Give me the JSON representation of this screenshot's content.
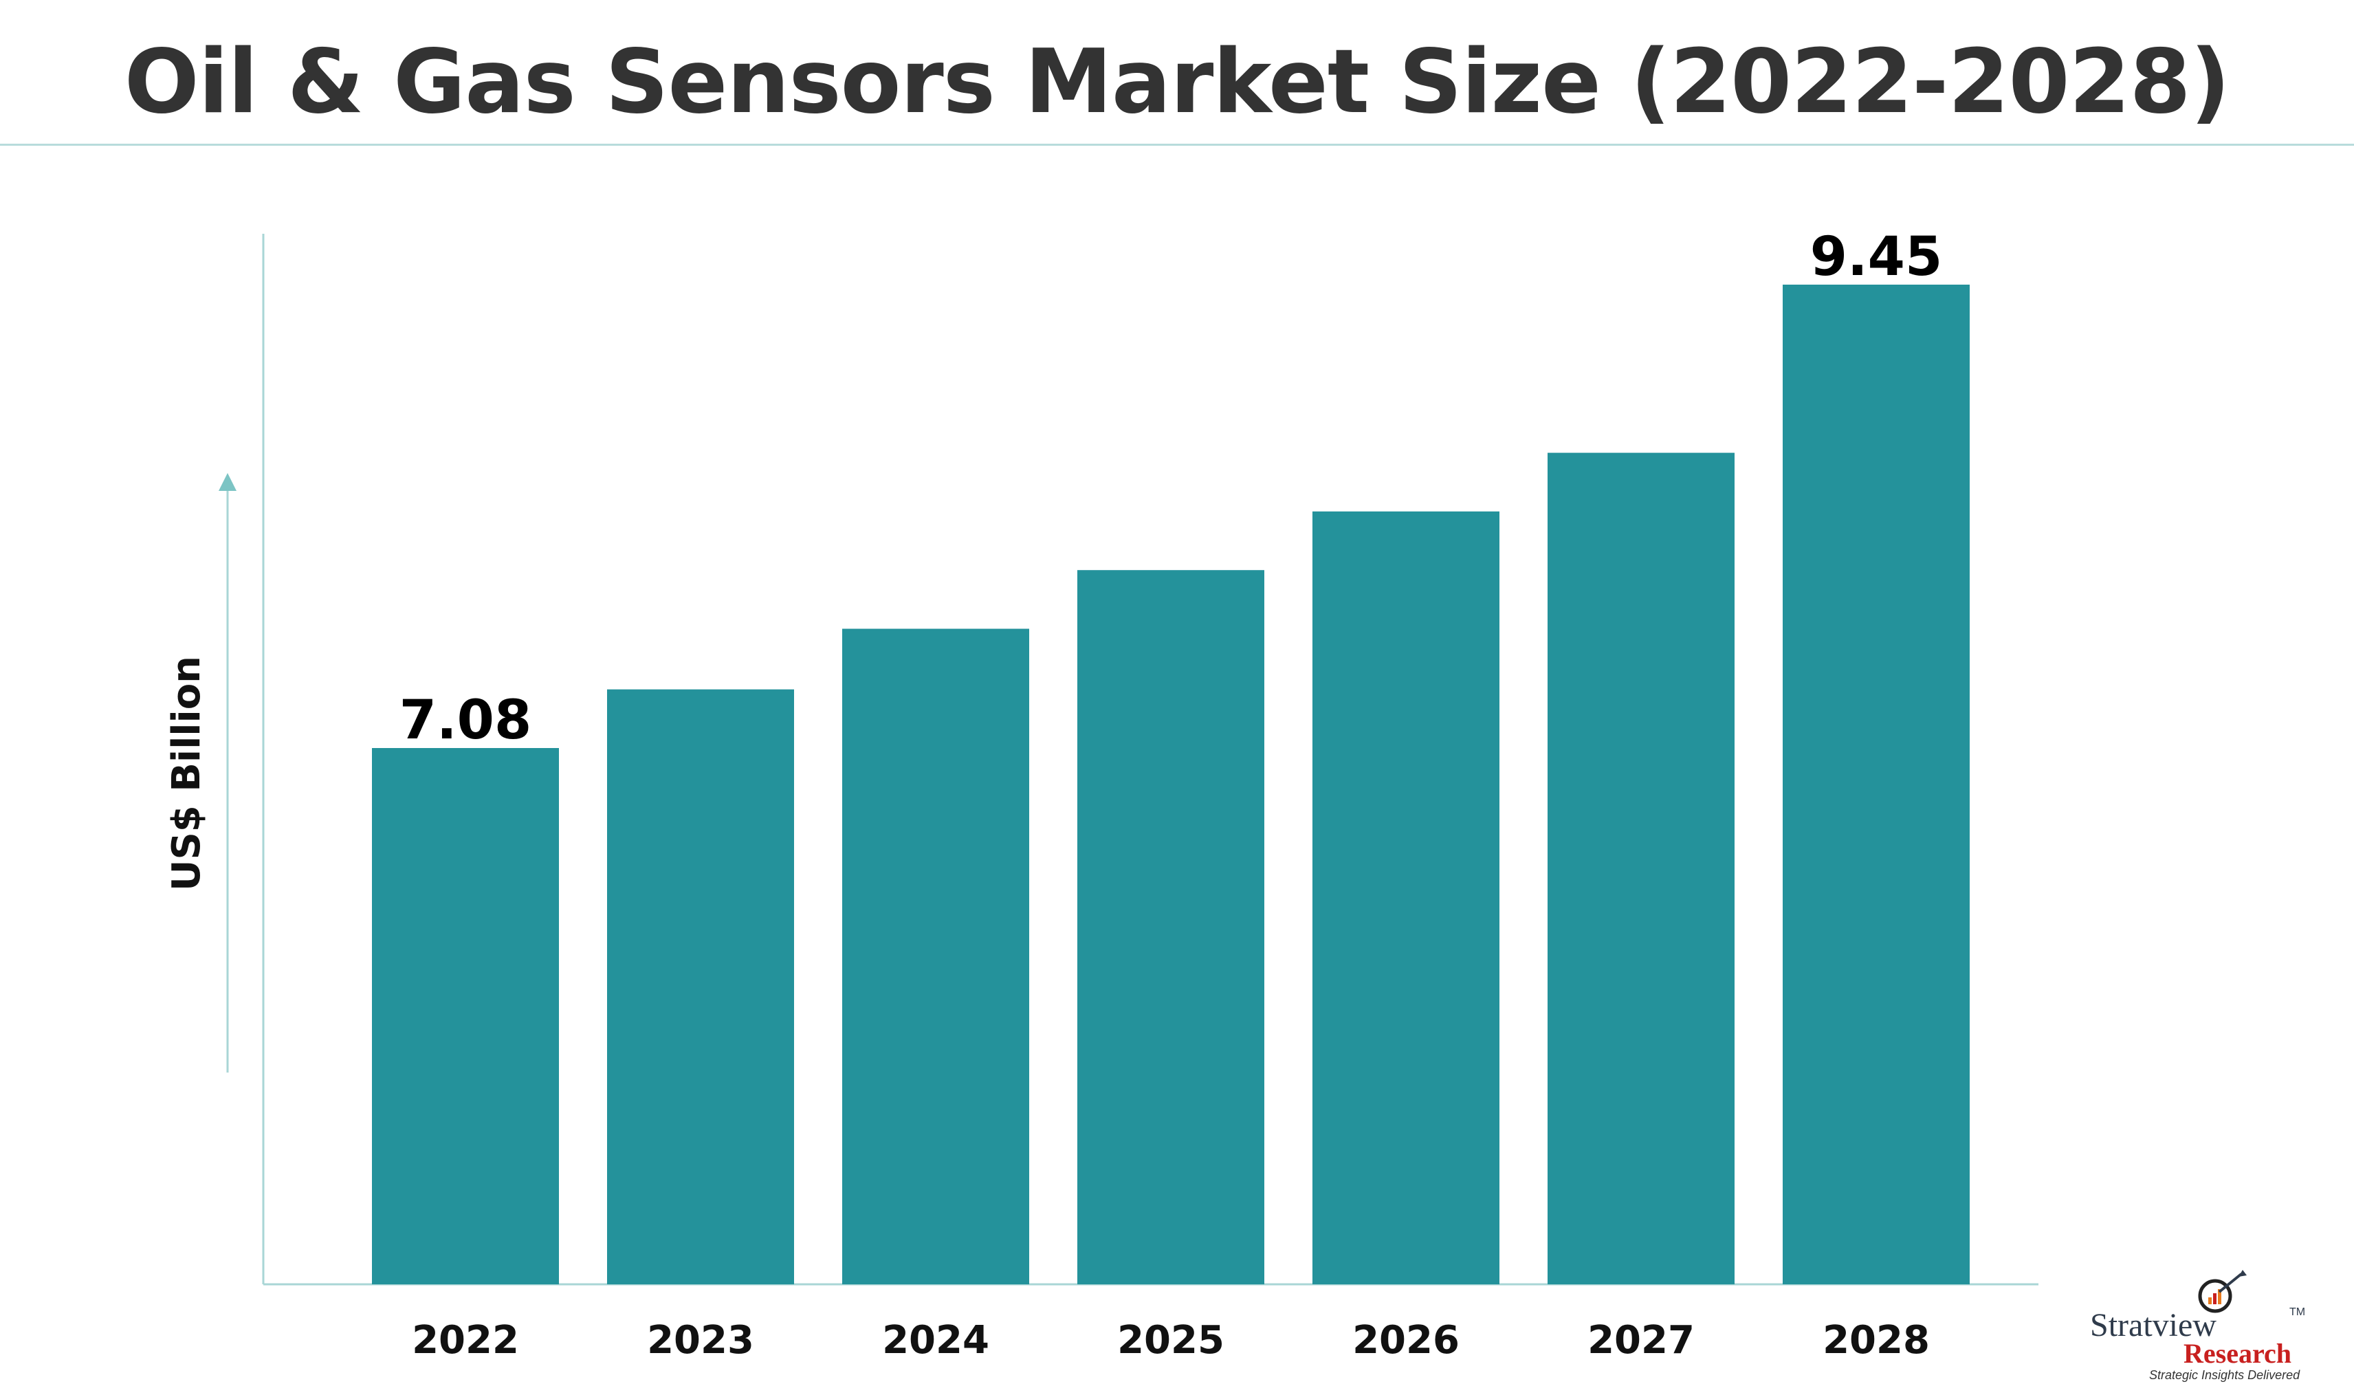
{
  "title": "Oil & Gas Sensors Market Size (2022-2028)",
  "chart_data": {
    "type": "bar",
    "categories": [
      "2022",
      "2023",
      "2024",
      "2025",
      "2026",
      "2027",
      "2028"
    ],
    "values": [
      7.08,
      7.38,
      7.69,
      7.99,
      8.29,
      8.59,
      9.45
    ],
    "data_labels": [
      "7.08",
      "",
      "",
      "",
      "",
      "",
      "9.45"
    ],
    "xlabel": "",
    "ylabel": "US$ Billion",
    "ylim": [
      0,
      9.45
    ],
    "grid": false,
    "legend": "none",
    "bar_color": "#24929b",
    "axis_color": "#a9d6d6"
  },
  "logo": {
    "line1": "Stratview",
    "tm": "TM",
    "line2": "Research",
    "tagline": "Strategic Insights Delivered"
  }
}
